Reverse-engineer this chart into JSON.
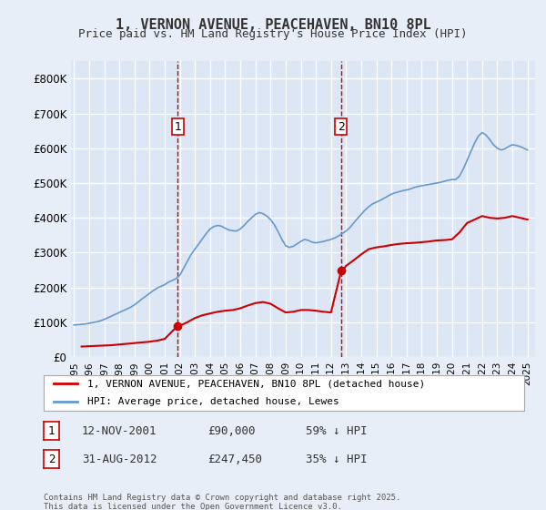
{
  "title": "1, VERNON AVENUE, PEACEHAVEN, BN10 8PL",
  "subtitle": "Price paid vs. HM Land Registry's House Price Index (HPI)",
  "ylabel": "",
  "background_color": "#e8eef7",
  "plot_bg_color": "#dce6f5",
  "grid_color": "#ffffff",
  "ylim": [
    0,
    850000
  ],
  "yticks": [
    0,
    100000,
    200000,
    300000,
    400000,
    500000,
    600000,
    700000,
    800000
  ],
  "ytick_labels": [
    "£0",
    "£100K",
    "£200K",
    "£300K",
    "£400K",
    "£500K",
    "£600K",
    "£700K",
    "£800K"
  ],
  "sale1_date": 2001.87,
  "sale1_price": 90000,
  "sale1_label": "1",
  "sale2_date": 2012.67,
  "sale2_price": 247450,
  "sale2_label": "2",
  "legend_line1": "1, VERNON AVENUE, PEACEHAVEN, BN10 8PL (detached house)",
  "legend_line2": "HPI: Average price, detached house, Lewes",
  "footnote": "Contains HM Land Registry data © Crown copyright and database right 2025.\nThis data is licensed under the Open Government Licence v3.0.",
  "sale_line_color": "#cc0000",
  "hpi_line_color": "#6699cc",
  "property_line_color": "#cc0000",
  "annotation_box_color": "#cc0000",
  "hpi_data_x": [
    1995.0,
    1995.25,
    1995.5,
    1995.75,
    1996.0,
    1996.25,
    1996.5,
    1996.75,
    1997.0,
    1997.25,
    1997.5,
    1997.75,
    1998.0,
    1998.25,
    1998.5,
    1998.75,
    1999.0,
    1999.25,
    1999.5,
    1999.75,
    2000.0,
    2000.25,
    2000.5,
    2000.75,
    2001.0,
    2001.25,
    2001.5,
    2001.75,
    2002.0,
    2002.25,
    2002.5,
    2002.75,
    2003.0,
    2003.25,
    2003.5,
    2003.75,
    2004.0,
    2004.25,
    2004.5,
    2004.75,
    2005.0,
    2005.25,
    2005.5,
    2005.75,
    2006.0,
    2006.25,
    2006.5,
    2006.75,
    2007.0,
    2007.25,
    2007.5,
    2007.75,
    2008.0,
    2008.25,
    2008.5,
    2008.75,
    2009.0,
    2009.25,
    2009.5,
    2009.75,
    2010.0,
    2010.25,
    2010.5,
    2010.75,
    2011.0,
    2011.25,
    2011.5,
    2011.75,
    2012.0,
    2012.25,
    2012.5,
    2012.75,
    2013.0,
    2013.25,
    2013.5,
    2013.75,
    2014.0,
    2014.25,
    2014.5,
    2014.75,
    2015.0,
    2015.25,
    2015.5,
    2015.75,
    2016.0,
    2016.25,
    2016.5,
    2016.75,
    2017.0,
    2017.25,
    2017.5,
    2017.75,
    2018.0,
    2018.25,
    2018.5,
    2018.75,
    2019.0,
    2019.25,
    2019.5,
    2019.75,
    2020.0,
    2020.25,
    2020.5,
    2020.75,
    2021.0,
    2021.25,
    2021.5,
    2021.75,
    2022.0,
    2022.25,
    2022.5,
    2022.75,
    2023.0,
    2023.25,
    2023.5,
    2023.75,
    2024.0,
    2024.25,
    2024.5,
    2024.75,
    2025.0
  ],
  "hpi_data_y": [
    92000,
    93000,
    94000,
    95000,
    97000,
    99000,
    101000,
    104000,
    108000,
    113000,
    118000,
    123000,
    128000,
    133000,
    138000,
    143000,
    150000,
    158000,
    167000,
    175000,
    183000,
    191000,
    198000,
    203000,
    208000,
    215000,
    220000,
    225000,
    235000,
    255000,
    275000,
    295000,
    310000,
    325000,
    340000,
    355000,
    368000,
    375000,
    378000,
    376000,
    370000,
    365000,
    363000,
    362000,
    368000,
    378000,
    390000,
    400000,
    410000,
    415000,
    412000,
    405000,
    395000,
    380000,
    360000,
    338000,
    320000,
    315000,
    318000,
    325000,
    332000,
    338000,
    335000,
    330000,
    328000,
    330000,
    332000,
    335000,
    338000,
    342000,
    348000,
    355000,
    362000,
    372000,
    385000,
    398000,
    410000,
    422000,
    432000,
    440000,
    445000,
    450000,
    456000,
    462000,
    468000,
    472000,
    475000,
    478000,
    480000,
    483000,
    487000,
    490000,
    492000,
    494000,
    496000,
    498000,
    500000,
    502000,
    505000,
    508000,
    510000,
    510000,
    520000,
    540000,
    565000,
    590000,
    615000,
    635000,
    645000,
    638000,
    625000,
    610000,
    600000,
    595000,
    598000,
    605000,
    610000,
    608000,
    605000,
    600000,
    595000
  ],
  "property_data_x": [
    1995.5,
    1996.0,
    1996.5,
    1997.0,
    1997.5,
    1998.0,
    1998.5,
    1999.0,
    1999.5,
    2000.0,
    2000.5,
    2001.0,
    2001.87,
    2002.0,
    2002.5,
    2003.0,
    2003.5,
    2004.0,
    2004.5,
    2005.0,
    2005.5,
    2006.0,
    2006.5,
    2007.0,
    2007.5,
    2008.0,
    2008.5,
    2009.0,
    2009.5,
    2010.0,
    2010.5,
    2011.0,
    2011.5,
    2012.0,
    2012.67,
    2012.75,
    2013.0,
    2013.5,
    2014.0,
    2014.5,
    2015.0,
    2015.5,
    2016.0,
    2016.5,
    2017.0,
    2017.5,
    2018.0,
    2018.5,
    2019.0,
    2019.5,
    2020.0,
    2020.5,
    2021.0,
    2021.5,
    2022.0,
    2022.5,
    2023.0,
    2023.5,
    2024.0,
    2024.5,
    2025.0
  ],
  "property_data_y": [
    30000,
    31000,
    32000,
    33000,
    34000,
    36000,
    38000,
    40000,
    42000,
    44000,
    47000,
    52000,
    90000,
    90000,
    100000,
    112000,
    120000,
    125000,
    130000,
    133000,
    135000,
    140000,
    148000,
    155000,
    158000,
    153000,
    140000,
    128000,
    130000,
    135000,
    135000,
    133000,
    130000,
    128000,
    247450,
    247450,
    262000,
    278000,
    295000,
    310000,
    315000,
    318000,
    322000,
    325000,
    327000,
    328000,
    330000,
    332000,
    335000,
    336000,
    338000,
    358000,
    385000,
    395000,
    405000,
    400000,
    398000,
    400000,
    405000,
    400000,
    395000
  ]
}
